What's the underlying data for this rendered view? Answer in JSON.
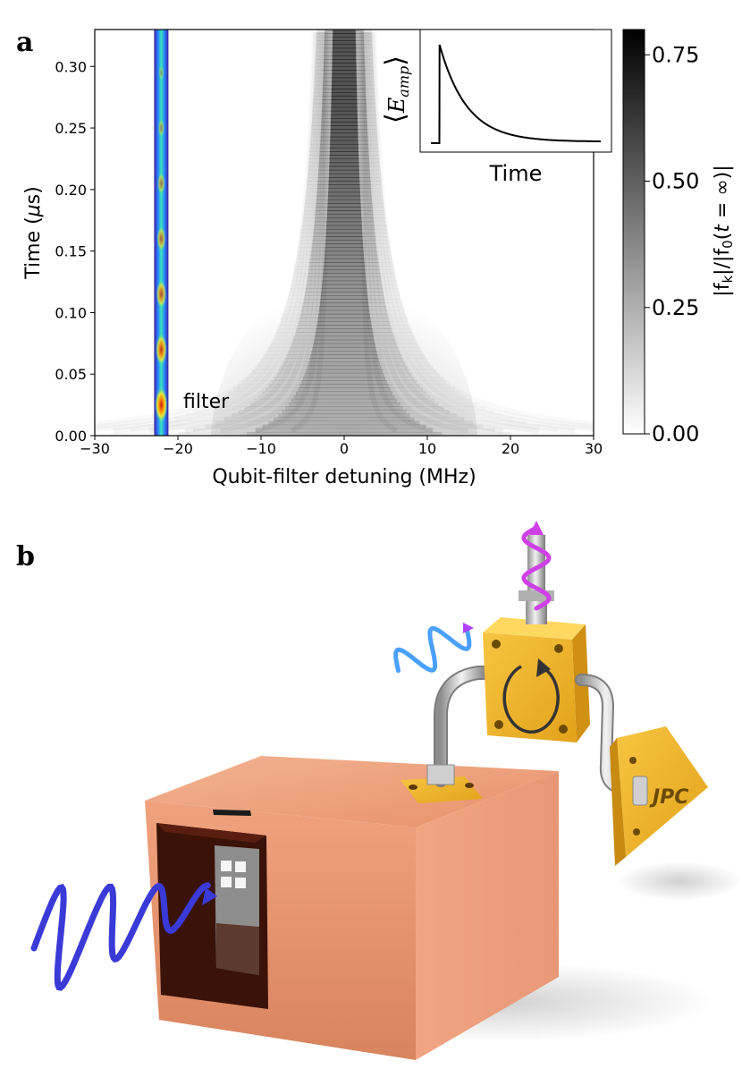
{
  "panels": {
    "a": {
      "label": "a"
    },
    "b": {
      "label": "b"
    }
  },
  "chart_data": [
    {
      "type": "heatmap",
      "title": "",
      "xlabel": "Qubit-filter detuning (MHz)",
      "ylabel": "Time (μs)",
      "xlim": [
        -30,
        30
      ],
      "ylim": [
        0,
        0.33
      ],
      "xticks": [
        -30,
        -20,
        -10,
        0,
        10,
        20,
        30
      ],
      "xtick_labels": [
        "−30",
        "−20",
        "−10",
        "0",
        "10",
        "20",
        "30"
      ],
      "yticks": [
        0.0,
        0.05,
        0.1,
        0.15,
        0.2,
        0.25,
        0.3
      ],
      "ytick_labels": [
        "0.00",
        "0.05",
        "0.10",
        "0.15",
        "0.20",
        "0.25",
        "0.30"
      ],
      "colorbar": {
        "label": "|f_k|/|f_0(t = ∞)|",
        "range": [
          0,
          0.8
        ],
        "ticks": [
          0,
          0.25,
          0.5,
          0.75
        ],
        "tick_labels": [
          "0.00",
          "0.25",
          "0.50",
          "0.75"
        ],
        "colormap": "greys"
      },
      "features": {
        "peak_detuning": 0,
        "filter_line_detuning": -22,
        "filter_line_label": "filter",
        "filter_line_colormap": "jet",
        "filter_line_maxima_times": [
          0.025,
          0.07,
          0.115,
          0.16,
          0.205,
          0.25,
          0.295
        ]
      },
      "grid": false
    },
    {
      "type": "line",
      "title": "",
      "xlabel": "Time",
      "ylabel": "⟨E_amp⟩",
      "x": [
        0,
        0.05,
        0.051,
        0.1,
        0.15,
        0.2,
        0.3,
        0.4,
        0.5,
        0.6,
        0.7,
        0.8,
        0.9,
        1.0
      ],
      "y": [
        0,
        0,
        1.0,
        0.72,
        0.52,
        0.38,
        0.21,
        0.12,
        0.07,
        0.045,
        0.03,
        0.022,
        0.018,
        0.015
      ],
      "ticks_shown": false
    }
  ],
  "illustration": {
    "jpc_label": "JPC",
    "colors": {
      "copper": "#e8956e",
      "gold": "#f2b628",
      "input_wave": "#3a3ad8",
      "reflected_wave": "#4aa0ff",
      "output_wave": "#d040e8"
    }
  },
  "text": {
    "cbar_label_main": "|f",
    "cbar_label_sub_k": "k",
    "cbar_label_mid": "|/|f",
    "cbar_label_sub_0": "0",
    "cbar_label_paren_open": "(",
    "cbar_label_t": "t",
    "cbar_label_eq": " = ∞)|",
    "ylabel_time": "Time (",
    "ylabel_mu": "μ",
    "ylabel_s": "s)",
    "inset_E": "E",
    "inset_amp": "amp"
  }
}
